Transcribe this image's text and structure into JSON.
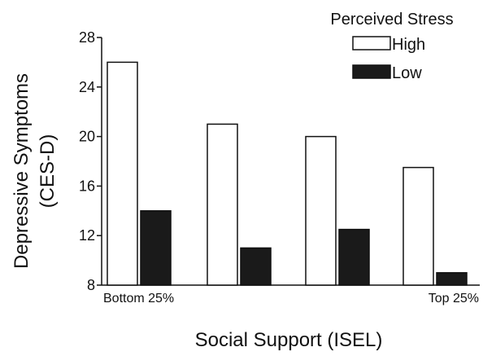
{
  "chart_data": {
    "type": "bar",
    "title": "",
    "xlabel": "Social Support (ISEL)",
    "ylabel_lines": [
      "Depressive Symptoms",
      "(CES-D)"
    ],
    "ylim": [
      8,
      28
    ],
    "yticks": [
      8,
      12,
      16,
      20,
      24,
      28
    ],
    "category_labels": [
      "Bottom 25%",
      "",
      "",
      "Top 25%"
    ],
    "series": [
      {
        "name": "High",
        "color": "#ffffff",
        "values": [
          26,
          21,
          20,
          17.5
        ]
      },
      {
        "name": "Low",
        "color": "#1a1a1a",
        "values": [
          14,
          11,
          12.5,
          9
        ]
      }
    ],
    "legend": {
      "title": "Perceived Stress",
      "placement": "top-right"
    },
    "grid": false
  }
}
